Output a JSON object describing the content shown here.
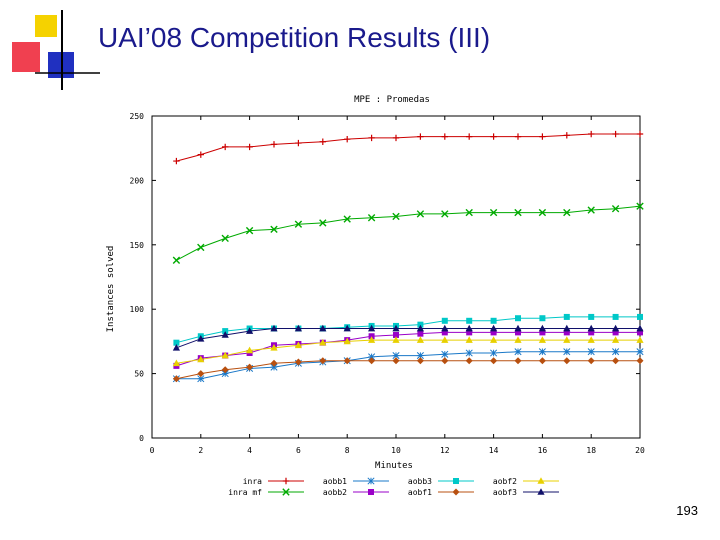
{
  "slide": {
    "title": "UAI’08 Competition Results (III)",
    "page_number": "193"
  },
  "colors": {
    "title": "#1a1a8c",
    "logo_yellow": "#f5d200",
    "logo_red": "#f04050",
    "logo_blue": "#2030c0"
  },
  "chart_data": {
    "type": "line",
    "title": "MPE : Promedas",
    "xlabel": "Minutes",
    "ylabel": "Instances solved",
    "xlim": [
      0,
      20
    ],
    "ylim": [
      0,
      250
    ],
    "xticks": [
      0,
      2,
      4,
      6,
      8,
      10,
      12,
      14,
      16,
      18,
      20
    ],
    "yticks": [
      0,
      50,
      100,
      150,
      200,
      250
    ],
    "grid": false,
    "legend_position": "bottom",
    "x": [
      1,
      2,
      3,
      4,
      5,
      6,
      7,
      8,
      9,
      10,
      11,
      12,
      13,
      14,
      15,
      16,
      17,
      18,
      19,
      20
    ],
    "series": [
      {
        "name": "inra",
        "color": "#cc0000",
        "marker": "plus",
        "values": [
          215,
          220,
          226,
          226,
          228,
          229,
          230,
          232,
          233,
          233,
          234,
          234,
          234,
          234,
          234,
          234,
          235,
          236,
          236,
          236
        ]
      },
      {
        "name": "inra mf",
        "color": "#00aa00",
        "marker": "x",
        "values": [
          138,
          148,
          155,
          161,
          162,
          166,
          167,
          170,
          171,
          172,
          174,
          174,
          175,
          175,
          175,
          175,
          175,
          177,
          178,
          180
        ]
      },
      {
        "name": "aobb1",
        "color": "#1a78c8",
        "marker": "star",
        "values": [
          46,
          46,
          50,
          54,
          55,
          58,
          59,
          60,
          63,
          64,
          64,
          65,
          66,
          66,
          67,
          67,
          67,
          67,
          67,
          67
        ]
      },
      {
        "name": "aobb2",
        "color": "#9a00c8",
        "marker": "square",
        "values": [
          56,
          62,
          64,
          66,
          72,
          73,
          74,
          76,
          79,
          80,
          81,
          82,
          82,
          82,
          82,
          82,
          82,
          82,
          82,
          82
        ]
      },
      {
        "name": "aobb3",
        "color": "#00c8c8",
        "marker": "square",
        "values": [
          74,
          79,
          83,
          85,
          85,
          85,
          85,
          86,
          87,
          87,
          88,
          91,
          91,
          91,
          93,
          93,
          94,
          94,
          94,
          94
        ]
      },
      {
        "name": "aobf1",
        "color": "#b85010",
        "marker": "diamond",
        "values": [
          46,
          50,
          53,
          55,
          58,
          59,
          60,
          60,
          60,
          60,
          60,
          60,
          60,
          60,
          60,
          60,
          60,
          60,
          60,
          60
        ]
      },
      {
        "name": "aobf2",
        "color": "#e8d000",
        "marker": "triangle",
        "values": [
          58,
          61,
          64,
          68,
          70,
          72,
          74,
          75,
          76,
          76,
          76,
          76,
          76,
          76,
          76,
          76,
          76,
          76,
          76,
          76
        ]
      },
      {
        "name": "aobf3",
        "color": "#10106a",
        "marker": "triangle",
        "values": [
          70,
          77,
          80,
          83,
          85,
          85,
          85,
          85,
          85,
          85,
          85,
          85,
          85,
          85,
          85,
          85,
          85,
          85,
          85,
          85
        ]
      }
    ]
  }
}
